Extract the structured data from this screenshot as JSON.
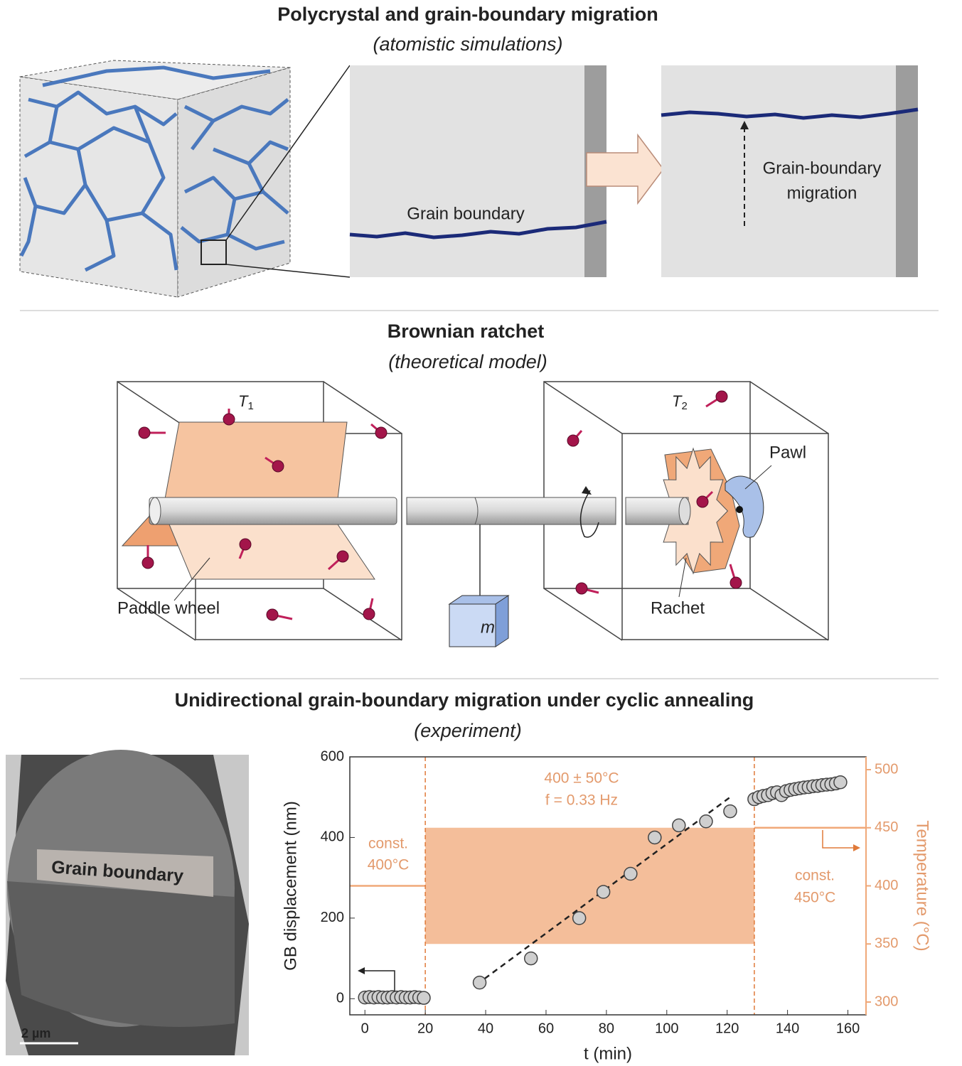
{
  "panels": [
    {
      "title": "Polycrystal and grain-boundary migration",
      "subtitle": "(atomistic simulations)",
      "labels": {
        "grain_boundary": "Grain boundary",
        "migration": [
          "Grain-boundary",
          "migration"
        ]
      }
    },
    {
      "title": "Brownian ratchet",
      "subtitle": "(theoretical model)",
      "labels": {
        "t1": [
          "T",
          "1"
        ],
        "t2": [
          "T",
          "2"
        ],
        "pawl": "Pawl",
        "paddle_wheel": "Paddle wheel",
        "rachet": "Rachet",
        "mass": "m"
      }
    },
    {
      "title": "Unidirectional grain-boundary migration under cyclic annealing",
      "subtitle": "(experiment)"
    }
  ],
  "micrograph": {
    "label": "Grain boundary",
    "scale_bar": "2 µm"
  },
  "chart_data": {
    "type": "scatter",
    "xlabel": "t (min)",
    "ylabel": "GB displacement (nm)",
    "y2label": "Temperature (°C)",
    "xlim": [
      -5,
      166
    ],
    "ylim": [
      -40,
      600
    ],
    "y2lim": [
      289,
      511
    ],
    "xticks": [
      0,
      20,
      40,
      60,
      80,
      100,
      120,
      140,
      160
    ],
    "yticks": [
      0,
      200,
      400,
      600
    ],
    "y2ticks": [
      300,
      350,
      400,
      450,
      500
    ],
    "color": "#cfcfcf",
    "x": [
      0,
      1.5,
      3,
      4.5,
      6,
      7.5,
      9,
      10.5,
      12,
      13.5,
      15,
      16.5,
      18,
      19.5,
      38,
      55,
      71,
      79,
      88,
      96,
      104,
      113,
      121,
      129,
      130.5,
      132,
      133.5,
      135,
      136.5,
      138,
      139.5,
      141,
      142.5,
      144,
      145.5,
      147,
      148.5,
      150,
      151.5,
      153,
      154.5,
      156,
      157.5
    ],
    "values": [
      3,
      4,
      3,
      4,
      3,
      3,
      4,
      3,
      4,
      3,
      3,
      4,
      3,
      2,
      40,
      100,
      200,
      265,
      310,
      400,
      430,
      440,
      465,
      495,
      500,
      503,
      505,
      510,
      512,
      505,
      515,
      518,
      520,
      522,
      524,
      525,
      527,
      528,
      530,
      531,
      532,
      534,
      537
    ],
    "fit": {
      "x": [
        37,
        121
      ],
      "values": [
        35,
        500
      ]
    },
    "temperature": {
      "color": "#f0a878",
      "segments": [
        {
          "x": [
            -5,
            20
          ],
          "values": [
            400,
            400
          ]
        },
        {
          "x": [
            129,
            166
          ],
          "values": [
            450,
            450
          ]
        }
      ],
      "band": {
        "x": [
          20,
          129
        ],
        "values": [
          350,
          450
        ]
      },
      "switch_x": [
        20,
        129
      ]
    },
    "annotations": {
      "const_low": [
        "const.",
        "400°C"
      ],
      "cyclic": [
        "400 ±  50°C",
        "f = 0.33 Hz"
      ],
      "const_high": [
        "const.",
        "450°C"
      ]
    }
  }
}
